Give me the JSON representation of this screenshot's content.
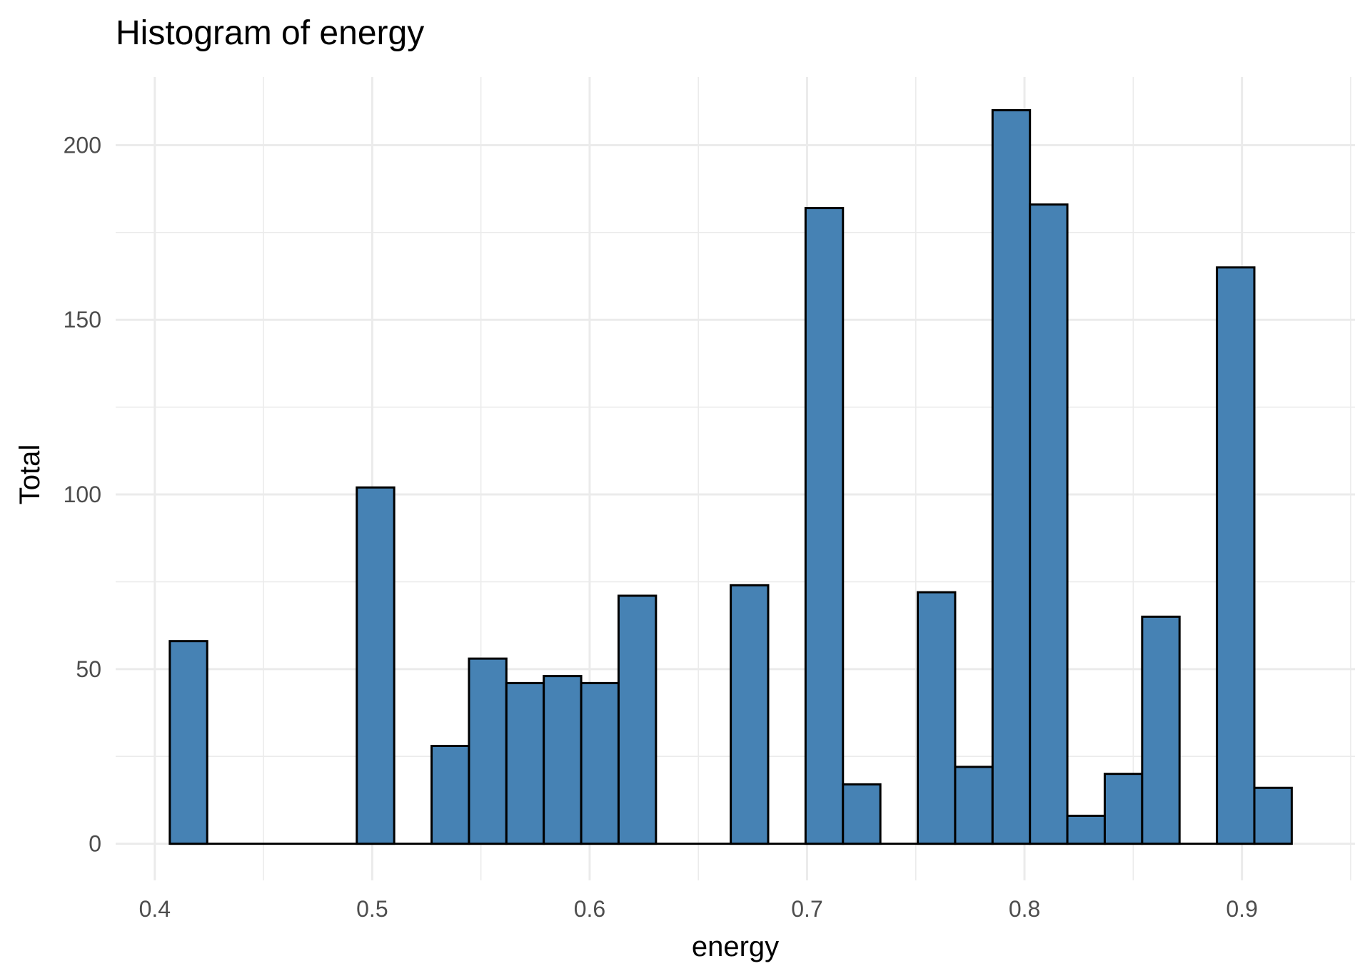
{
  "chart_data": {
    "type": "bar",
    "title": "Histogram of  energy",
    "xlabel": "energy",
    "ylabel": "Total",
    "xlim": [
      0.382,
      0.952
    ],
    "ylim": [
      -10.5,
      219.5
    ],
    "x_ticks": [
      0.4,
      0.5,
      0.6,
      0.7,
      0.8,
      0.9
    ],
    "x_tick_labels": [
      "0.4",
      "0.5",
      "0.6",
      "0.7",
      "0.8",
      "0.9"
    ],
    "y_ticks": [
      0,
      50,
      100,
      150,
      200
    ],
    "y_tick_labels": [
      "0",
      "50",
      "100",
      "150",
      "200"
    ],
    "grid": true,
    "bin_width": 0.0172,
    "bars": [
      {
        "x": 0.4155,
        "value": 58
      },
      {
        "x": 0.4327,
        "value": 0
      },
      {
        "x": 0.4499,
        "value": 0
      },
      {
        "x": 0.4671,
        "value": 0
      },
      {
        "x": 0.4843,
        "value": 0
      },
      {
        "x": 0.5015,
        "value": 102
      },
      {
        "x": 0.5187,
        "value": 0
      },
      {
        "x": 0.5359,
        "value": 28
      },
      {
        "x": 0.5531,
        "value": 53
      },
      {
        "x": 0.5703,
        "value": 46
      },
      {
        "x": 0.5875,
        "value": 48
      },
      {
        "x": 0.6047,
        "value": 46
      },
      {
        "x": 0.6219,
        "value": 71
      },
      {
        "x": 0.6391,
        "value": 0
      },
      {
        "x": 0.6563,
        "value": 0
      },
      {
        "x": 0.6735,
        "value": 74
      },
      {
        "x": 0.6907,
        "value": 0
      },
      {
        "x": 0.7079,
        "value": 182
      },
      {
        "x": 0.7251,
        "value": 17
      },
      {
        "x": 0.7423,
        "value": 0
      },
      {
        "x": 0.7595,
        "value": 72
      },
      {
        "x": 0.7767,
        "value": 22
      },
      {
        "x": 0.7939,
        "value": 210
      },
      {
        "x": 0.8111,
        "value": 183
      },
      {
        "x": 0.8283,
        "value": 8
      },
      {
        "x": 0.8455,
        "value": 20
      },
      {
        "x": 0.8627,
        "value": 65
      },
      {
        "x": 0.8799,
        "value": 0
      },
      {
        "x": 0.8971,
        "value": 165
      },
      {
        "x": 0.9143,
        "value": 16
      }
    ],
    "fill_color": "#4682B4",
    "outline_color": "#000000",
    "grid_color": "#EBEBEB"
  }
}
